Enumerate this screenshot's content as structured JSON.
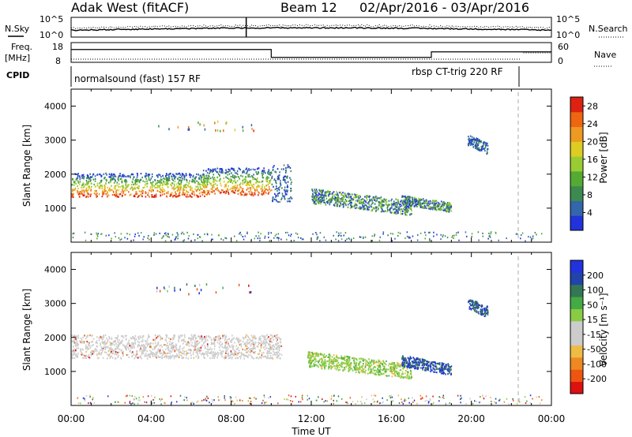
{
  "header": {
    "station": "Adak West (fitACF)",
    "beam": "Beam 12",
    "date_range": "02/Apr/2016 - 03/Apr/2016"
  },
  "strips": {
    "nsky_label": "N.Sky",
    "nsearch_label": "N.Search",
    "sky_ticks": [
      "10^5",
      "10^0"
    ],
    "freq_label": "Freq.",
    "freq_unit": "[MHz]",
    "freq_ticks": [
      "18",
      "8"
    ],
    "nave_label": "Nave",
    "nave_ticks": [
      "60",
      "0"
    ],
    "cpid_label": "CPID",
    "cpid_1": "normalsound (fast) 157 RF",
    "cpid_2": "rbsp CT-trig 220 RF"
  },
  "x_axis": {
    "label": "Time UT",
    "ticks": [
      "00:00",
      "04:00",
      "08:00",
      "12:00",
      "16:00",
      "20:00",
      "00:00"
    ]
  },
  "colors": {
    "power": [
      "#2233dd",
      "#3366aa",
      "#3d8a50",
      "#55aa33",
      "#99cc33",
      "#ddcc22",
      "#ee9922",
      "#ee6611",
      "#dd2211"
    ],
    "velocity": [
      "#dd1111",
      "#ee5511",
      "#ee8822",
      "#eebb44",
      "#cccccc",
      "#cccccc",
      "#88cc44",
      "#44aa44",
      "#337755",
      "#2244aa",
      "#2233dd"
    ]
  },
  "chart_data": [
    {
      "type": "heatmap",
      "name": "power",
      "ylabel": "Slant Range [km]",
      "xlabel": "Time UT",
      "xlim_hours": [
        0,
        24
      ],
      "ylim": [
        0,
        4500
      ],
      "yticks": [
        1000,
        2000,
        3000,
        4000
      ],
      "colorbar_label": "Power [dB]",
      "colorbar_ticks": [
        4,
        8,
        12,
        16,
        20,
        24,
        28
      ],
      "colorbar_range": [
        0,
        30
      ],
      "regions": [
        {
          "t0": 0.0,
          "t1": 6.8,
          "r0": 1350,
          "r1": 2050,
          "level": "mixed-high"
        },
        {
          "t0": 6.5,
          "t1": 10.0,
          "r0": 1400,
          "r1": 2200,
          "level": "mixed-high"
        },
        {
          "t0": 10.0,
          "t1": 11.0,
          "r0": 1200,
          "r1": 2300,
          "level": "low"
        },
        {
          "t0": 12.0,
          "t1": 17.0,
          "r0": 800,
          "r1": 1600,
          "level": "mid"
        },
        {
          "t0": 16.5,
          "t1": 19.0,
          "r0": 900,
          "r1": 1400,
          "level": "mid"
        },
        {
          "t0": 19.8,
          "t1": 20.8,
          "r0": 2600,
          "r1": 3200,
          "level": "low"
        }
      ]
    },
    {
      "type": "heatmap",
      "name": "velocity",
      "ylabel": "Slant Range [km]",
      "xlabel": "Time UT",
      "xlim_hours": [
        0,
        24
      ],
      "ylim": [
        0,
        4500
      ],
      "yticks": [
        1000,
        2000,
        3000,
        4000
      ],
      "colorbar_label": "Velocity [m s⁻¹]",
      "colorbar_ticks": [
        -200,
        -100,
        -50,
        -15,
        15,
        50,
        100,
        200
      ],
      "regions": [
        {
          "t0": 0.0,
          "t1": 10.5,
          "r0": 1400,
          "r1": 2100,
          "level": "near-zero"
        },
        {
          "t0": 11.8,
          "t1": 17.0,
          "r0": 800,
          "r1": 1600,
          "level": "positive"
        },
        {
          "t0": 16.5,
          "t1": 19.0,
          "r0": 900,
          "r1": 1500,
          "level": "high-positive"
        },
        {
          "t0": 19.8,
          "t1": 20.8,
          "r0": 2600,
          "r1": 3200,
          "level": "high-positive"
        }
      ]
    }
  ]
}
